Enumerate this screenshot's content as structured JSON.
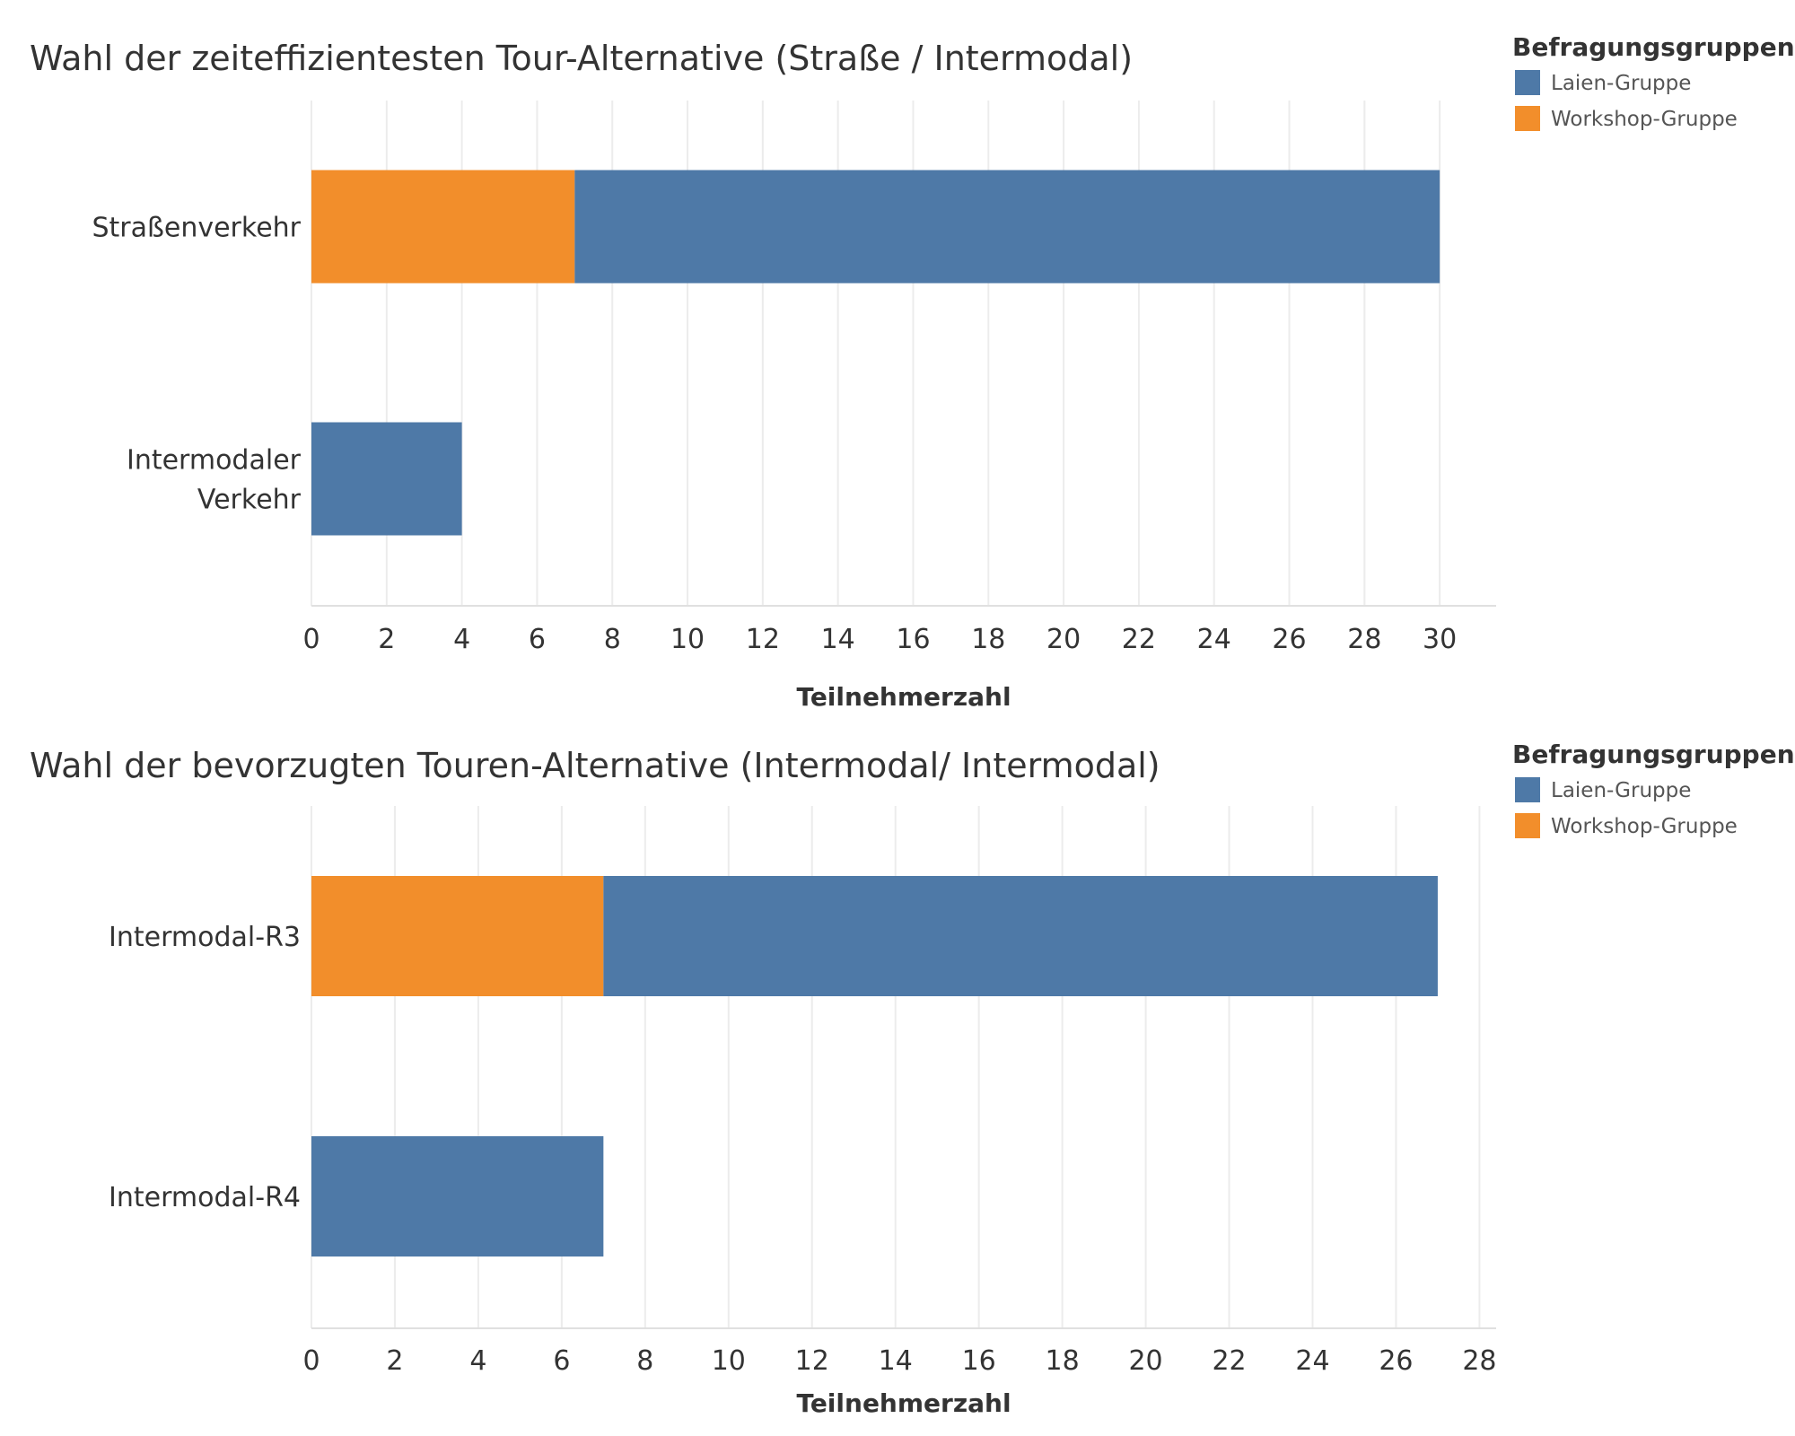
{
  "colors": {
    "laien": "#4e79a7",
    "workshop": "#f28e2b"
  },
  "chart_data": [
    {
      "type": "bar",
      "orientation": "horizontal",
      "stacked": true,
      "title": "Wahl der zeiteffizientesten Tour-Alternative (Straße / Intermodal)",
      "categories": [
        [
          "Straßenverkehr"
        ],
        [
          "Intermodaler",
          "Verkehr"
        ]
      ],
      "series": [
        {
          "name": "Workshop-Gruppe",
          "color_key": "workshop",
          "values": [
            7,
            0
          ]
        },
        {
          "name": "Laien-Gruppe",
          "color_key": "laien",
          "values": [
            23,
            4
          ]
        }
      ],
      "xlabel": "Teilnehmerzahl",
      "ylabel": "",
      "xlim": [
        0,
        31.5
      ],
      "xticks": [
        "0",
        "2",
        "4",
        "6",
        "8",
        "10",
        "12",
        "14",
        "16",
        "18",
        "20",
        "22",
        "24",
        "26",
        "28",
        "30"
      ],
      "grid": true,
      "legend": {
        "title": "Befragungsgruppen",
        "placement": "top-right",
        "entries": [
          {
            "label": "Laien-Gruppe",
            "color_key": "laien"
          },
          {
            "label": "Workshop-Gruppe",
            "color_key": "workshop"
          }
        ]
      }
    },
    {
      "type": "bar",
      "orientation": "horizontal",
      "stacked": true,
      "title": "Wahl der bevorzugten Touren-Alternative (Intermodal/ Intermodal)",
      "categories": [
        [
          "Intermodal-R3"
        ],
        [
          "Intermodal-R4"
        ]
      ],
      "series": [
        {
          "name": "Workshop-Gruppe",
          "color_key": "workshop",
          "values": [
            7,
            0
          ]
        },
        {
          "name": "Laien-Gruppe",
          "color_key": "laien",
          "values": [
            20,
            7
          ]
        }
      ],
      "xlabel": "Teilnehmerzahl",
      "ylabel": "",
      "xlim": [
        0,
        28.4
      ],
      "xticks": [
        "0",
        "2",
        "4",
        "6",
        "8",
        "10",
        "12",
        "14",
        "16",
        "18",
        "20",
        "22",
        "24",
        "26",
        "28"
      ],
      "grid": true,
      "legend": {
        "title": "Befragungsgruppen",
        "placement": "top-right",
        "entries": [
          {
            "label": "Laien-Gruppe",
            "color_key": "laien"
          },
          {
            "label": "Workshop-Gruppe",
            "color_key": "workshop"
          }
        ]
      }
    }
  ]
}
